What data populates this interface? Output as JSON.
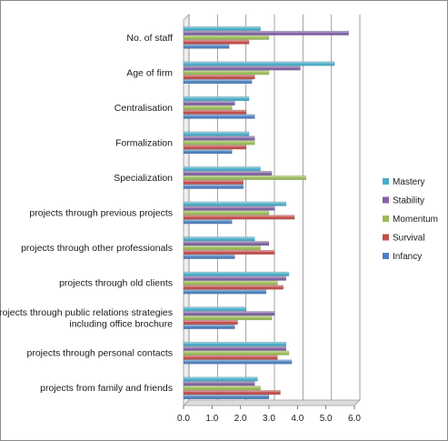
{
  "chart_data": {
    "type": "bar",
    "orientation": "horizontal",
    "title": "",
    "xlabel": "",
    "ylabel": "",
    "xlim": [
      0,
      6
    ],
    "xticks": [
      "0.0",
      "1.0",
      "2.0",
      "3.0",
      "4.0",
      "5.0",
      "6.0"
    ],
    "grid": "vertical",
    "legend": "right",
    "categories": [
      [
        "No. of staff"
      ],
      [
        "Age of firm"
      ],
      [
        "Centralisation"
      ],
      [
        "Formalization"
      ],
      [
        "Specialization"
      ],
      [
        "projects through previous projects"
      ],
      [
        "projects through other professionals"
      ],
      [
        "projects through old clients"
      ],
      [
        "projects through public relations strategies",
        "including office brochure"
      ],
      [
        "projects through personal contacts"
      ],
      [
        "projects from family and friends"
      ]
    ],
    "series": [
      {
        "name": "Mastery",
        "color": "#4bacc6",
        "values": [
          2.7,
          5.3,
          2.3,
          2.3,
          2.7,
          3.6,
          2.5,
          3.7,
          2.2,
          3.6,
          2.6
        ]
      },
      {
        "name": "Stability",
        "color": "#8064a2",
        "values": [
          5.8,
          4.1,
          1.8,
          2.5,
          3.1,
          3.2,
          3.0,
          3.6,
          3.2,
          3.6,
          2.5
        ]
      },
      {
        "name": "Momentum",
        "color": "#9bbb59",
        "values": [
          3.0,
          3.0,
          1.7,
          2.5,
          4.3,
          3.0,
          2.7,
          3.3,
          3.1,
          3.7,
          2.7
        ]
      },
      {
        "name": "Survival",
        "color": "#c0504d",
        "values": [
          2.3,
          2.5,
          2.2,
          2.2,
          2.1,
          3.9,
          3.2,
          3.5,
          1.9,
          3.3,
          3.4
        ]
      },
      {
        "name": "Infancy",
        "color": "#4f81bd",
        "values": [
          1.6,
          2.4,
          2.5,
          1.7,
          2.1,
          1.7,
          1.8,
          2.9,
          1.8,
          3.8,
          3.0
        ]
      }
    ]
  }
}
